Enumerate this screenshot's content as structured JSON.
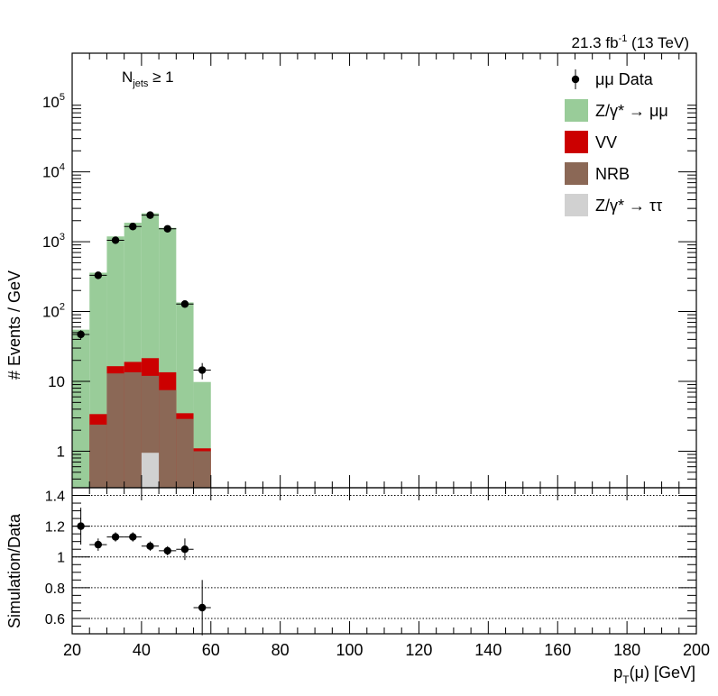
{
  "header": {
    "lumi_label": "21.3 fb",
    "lumi_exp": "-1",
    "energy_label": " (13 TeV)"
  },
  "annotation": {
    "n_main": "N",
    "n_sub": "jets",
    "n_rel": " ≥ 1"
  },
  "colors": {
    "zmumu": "#99cc99",
    "vv": "#cc0000",
    "nrb": "#8b6856",
    "ztautau": "#d1d1d1",
    "data": "#000000",
    "frame": "#000000"
  },
  "chart_data": [
    {
      "type": "bar",
      "stacked": true,
      "scale": "log",
      "ylabel": "# Events / GeV",
      "xlim": [
        20,
        200
      ],
      "ylim": [
        0.3,
        500000
      ],
      "bin_edges": [
        20,
        25,
        30,
        35,
        40,
        45,
        50,
        55,
        60
      ],
      "yticks": [
        {
          "v": 1,
          "m": "1",
          "e": ""
        },
        {
          "v": 10,
          "m": "10",
          "e": ""
        },
        {
          "v": 100,
          "m": "10",
          "e": "2"
        },
        {
          "v": 1000,
          "m": "10",
          "e": "3"
        },
        {
          "v": 10000,
          "m": "10",
          "e": "4"
        },
        {
          "v": 100000,
          "m": "10",
          "e": "5"
        }
      ],
      "series": [
        {
          "name": "Z/γ* → ττ",
          "key": "ztautau",
          "cumulative": [
            0.02,
            0.02,
            0.3,
            0.3,
            0.95,
            0.02,
            0.02,
            0.02
          ]
        },
        {
          "name": "NRB",
          "key": "nrb",
          "cumulative": [
            0.02,
            2.4,
            13.0,
            13.5,
            12.0,
            7.5,
            2.9,
            1.0
          ]
        },
        {
          "name": "VV",
          "key": "vv",
          "cumulative": [
            0.02,
            3.4,
            16.5,
            19.0,
            21.5,
            13.5,
            3.5,
            1.1
          ]
        },
        {
          "name": "Z/γ* → μμ",
          "key": "zmumu",
          "cumulative": [
            55,
            360,
            1190,
            1870,
            2550,
            1580,
            135,
            9.8
          ]
        }
      ],
      "data_points": {
        "name": "μμ Data",
        "x": [
          22.5,
          27.5,
          32.5,
          37.5,
          42.5,
          47.5,
          52.5,
          57.5
        ],
        "y": [
          47,
          330,
          1050,
          1650,
          2400,
          1530,
          128,
          14.5
        ],
        "yerr": [
          7,
          18,
          32,
          41,
          49,
          39,
          11,
          3.8
        ]
      }
    },
    {
      "type": "scatter",
      "ylabel": "Simulation/Data",
      "xlabel": "p",
      "xlabel_sub": "T",
      "xlabel_tail": "(μ) [GeV]",
      "xlim": [
        20,
        200
      ],
      "ylim": [
        0.5,
        1.45
      ],
      "xticks": [
        20,
        40,
        60,
        80,
        100,
        120,
        140,
        160,
        180,
        200
      ],
      "yticks": [
        "0.6",
        "0.8",
        "1",
        "1.2",
        "1.4"
      ],
      "grid": true,
      "x": [
        22.5,
        27.5,
        32.5,
        37.5,
        42.5,
        47.5,
        52.5,
        57.5
      ],
      "y": [
        1.2,
        1.08,
        1.13,
        1.13,
        1.07,
        1.04,
        1.05,
        0.67
      ],
      "yerr": [
        0.12,
        0.04,
        0.03,
        0.03,
        0.03,
        0.03,
        0.07,
        0.18
      ]
    }
  ],
  "legend": [
    {
      "label": "μμ Data",
      "kind": "marker",
      "color_key": "data"
    },
    {
      "label": "Z/γ* → μμ",
      "kind": "box",
      "color_key": "zmumu"
    },
    {
      "label": "VV",
      "kind": "box",
      "color_key": "vv"
    },
    {
      "label": "NRB",
      "kind": "box",
      "color_key": "nrb"
    },
    {
      "label": "Z/γ* → ττ",
      "kind": "box",
      "color_key": "ztautau"
    }
  ]
}
